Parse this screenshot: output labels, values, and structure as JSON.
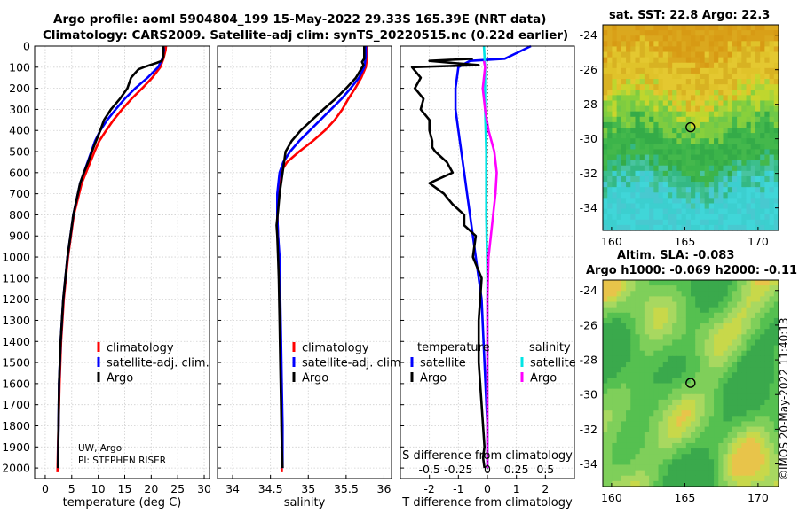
{
  "header": {
    "line1": "Argo profile: aoml 5904804_199 15-May-2022 29.33S 165.39E (NRT data)",
    "line2": "Climatology: CARS2009. Satellite-adj clim: synTS_20220515.nc (0.22d earlier)"
  },
  "credit": {
    "line1": "UW, Argo",
    "line2": "PI: STEPHEN RISER"
  },
  "watermark": "©IMOS 20-May-2022 11:40:13",
  "colors": {
    "climatology": "#ff0000",
    "satellite": "#0000ff",
    "argo": "#000000",
    "sat_salinity": "#00e5e5",
    "argo_salinity": "#ff00ff"
  },
  "chart_data": [
    {
      "id": "temperature",
      "type": "line",
      "xlabel": "temperature (deg C)",
      "ylabel": "",
      "xlim": [
        -2,
        31
      ],
      "ylim": [
        2050,
        0
      ],
      "xticks": [
        "0",
        "5",
        "10",
        "15",
        "20",
        "25",
        "30"
      ],
      "xtick_values": [
        0,
        5,
        10,
        15,
        20,
        25,
        30
      ],
      "yticks": [
        "0",
        "100",
        "200",
        "300",
        "400",
        "500",
        "600",
        "700",
        "800",
        "900",
        "1000",
        "1100",
        "1200",
        "1300",
        "1400",
        "1500",
        "1600",
        "1700",
        "1800",
        "1900",
        "2000"
      ],
      "ytick_values": [
        0,
        100,
        200,
        300,
        400,
        500,
        600,
        700,
        800,
        900,
        1000,
        1100,
        1200,
        1300,
        1400,
        1500,
        1600,
        1700,
        1800,
        1900,
        2000
      ],
      "legend": [
        "climatology",
        "satellite-adj. clim.",
        "Argo"
      ],
      "series": [
        {
          "name": "climatology",
          "color": "#ff0000",
          "x": [
            22.8,
            22.7,
            22.3,
            21.7,
            20.2,
            18.3,
            16.3,
            14.5,
            12.9,
            11.5,
            10.2,
            9.3,
            8.5,
            7.7,
            6.9,
            5.4,
            4.3,
            3.5,
            3.0,
            2.7,
            2.5,
            2.4,
            2.3
          ],
          "y": [
            0,
            20,
            60,
            100,
            150,
            200,
            250,
            300,
            350,
            400,
            450,
            500,
            550,
            600,
            650,
            800,
            1000,
            1200,
            1400,
            1600,
            1800,
            1900,
            2020
          ]
        },
        {
          "name": "satellite-adj. clim.",
          "color": "#0000ff",
          "x": [
            22.3,
            22.4,
            22.1,
            21.3,
            19.3,
            17.0,
            15.0,
            13.3,
            11.7,
            10.4,
            9.4,
            8.7,
            8.0,
            7.3,
            6.6,
            5.3,
            4.2,
            3.4,
            2.9,
            2.6,
            2.5,
            2.4
          ],
          "y": [
            0,
            20,
            60,
            100,
            150,
            200,
            250,
            300,
            350,
            400,
            450,
            500,
            550,
            600,
            650,
            800,
            1000,
            1200,
            1400,
            1600,
            1800,
            2000
          ]
        },
        {
          "name": "Argo",
          "color": "#000000",
          "x": [
            22.3,
            22.3,
            22.0,
            21.0,
            19.8,
            18.6,
            17.6,
            16.9,
            16.2,
            15.5,
            14.1,
            12.4,
            11.1,
            10.4,
            9.6,
            8.8,
            8.1,
            7.3,
            6.6,
            5.3,
            4.2,
            3.4,
            2.9,
            2.6,
            2.5,
            2.4
          ],
          "y": [
            0,
            50,
            70,
            80,
            90,
            100,
            110,
            130,
            150,
            200,
            250,
            300,
            350,
            400,
            450,
            500,
            550,
            600,
            650,
            800,
            1000,
            1200,
            1400,
            1600,
            1800,
            2000
          ]
        }
      ]
    },
    {
      "id": "salinity",
      "type": "line",
      "xlabel": "salinity",
      "ylabel": "",
      "xlim": [
        33.8,
        36.1
      ],
      "ylim": [
        2050,
        0
      ],
      "xticks": [
        "34",
        "34.5",
        "35",
        "35.5",
        "36"
      ],
      "xtick_values": [
        34,
        34.5,
        35,
        35.5,
        36
      ],
      "legend": [
        "climatology",
        "satellite-adj. clim.",
        "Argo"
      ],
      "series": [
        {
          "name": "climatology",
          "color": "#ff0000",
          "x": [
            35.78,
            35.78,
            35.76,
            35.7,
            35.62,
            35.53,
            35.45,
            35.35,
            35.22,
            35.06,
            34.88,
            34.72,
            34.63,
            34.6,
            34.59,
            34.6,
            34.61,
            34.62,
            34.63,
            34.64,
            34.65,
            34.65,
            34.65
          ],
          "y": [
            0,
            50,
            100,
            150,
            200,
            250,
            300,
            350,
            400,
            450,
            500,
            550,
            600,
            700,
            800,
            900,
            1000,
            1200,
            1400,
            1600,
            1800,
            1900,
            2020
          ]
        },
        {
          "name": "satellite-adj. clim.",
          "color": "#0000ff",
          "x": [
            35.76,
            35.76,
            35.74,
            35.67,
            35.56,
            35.44,
            35.3,
            35.16,
            35.02,
            34.88,
            34.76,
            34.67,
            34.62,
            34.59,
            34.59,
            34.6,
            34.62,
            34.63,
            34.64,
            34.65,
            34.66,
            34.66
          ],
          "y": [
            0,
            50,
            100,
            150,
            200,
            250,
            300,
            350,
            400,
            450,
            500,
            550,
            600,
            700,
            800,
            900,
            1000,
            1200,
            1400,
            1600,
            1800,
            2000
          ]
        },
        {
          "name": "Argo",
          "color": "#000000",
          "x": [
            35.74,
            35.74,
            35.71,
            35.73,
            35.63,
            35.5,
            35.36,
            35.2,
            35.05,
            34.9,
            34.78,
            34.7,
            34.66,
            34.62,
            34.6,
            34.58,
            34.59,
            34.6,
            34.61,
            34.62,
            34.63,
            34.64,
            34.65,
            34.66
          ],
          "y": [
            0,
            60,
            75,
            90,
            150,
            200,
            250,
            300,
            350,
            400,
            450,
            500,
            600,
            700,
            780,
            850,
            900,
            1000,
            1100,
            1300,
            1500,
            1700,
            1900,
            2000
          ]
        }
      ]
    },
    {
      "id": "difference",
      "type": "line",
      "xlabel": "T difference from climatology",
      "top_label": "S difference from climatology",
      "xlim": [
        -3.0,
        3.0
      ],
      "ylim": [
        2050,
        0
      ],
      "xticks": [
        "-2",
        "-1",
        "0",
        "1",
        "2"
      ],
      "xtick_values": [
        -2,
        -1,
        0,
        1,
        2
      ],
      "s_xticks": [
        "-0.5",
        "-0.25",
        "0",
        "0.25",
        "0.5"
      ],
      "s_xtick_values": [
        -0.5,
        -0.25,
        0,
        0.25,
        0.5
      ],
      "legend_temperature_title": "temperature",
      "legend_salinity_title": "salinity",
      "legend_temperature": [
        "satellite",
        "Argo"
      ],
      "legend_salinity": [
        "satellite",
        "Argo"
      ],
      "series": [
        {
          "name": "temperature satellite",
          "color": "#0000ff",
          "x": [
            1.5,
            0.6,
            -0.6,
            -1.0,
            -1.1,
            -1.1,
            -1.0,
            -0.9,
            -0.8,
            -0.7,
            -0.6,
            -0.4,
            -0.2,
            -0.1,
            0.0,
            0.0
          ],
          "y": [
            0,
            60,
            70,
            100,
            200,
            300,
            400,
            500,
            600,
            700,
            800,
            1000,
            1200,
            1500,
            1800,
            2000
          ]
        },
        {
          "name": "temperature Argo",
          "color": "#000000",
          "x": [
            -0.5,
            -2.0,
            -1.2,
            -0.3,
            -2.6,
            -2.3,
            -2.5,
            -2.2,
            -2.3,
            -2.0,
            -2.0,
            -1.9,
            -1.9,
            -1.8,
            -1.4,
            -1.2,
            -2.0,
            -1.5,
            -1.2,
            -0.8,
            -0.8,
            -0.4,
            -0.5,
            -0.2,
            -0.3,
            -0.3,
            -0.2,
            -0.1,
            -0.15,
            -0.1
          ],
          "y": [
            60,
            70,
            80,
            90,
            100,
            150,
            200,
            250,
            300,
            350,
            400,
            450,
            480,
            500,
            550,
            600,
            650,
            700,
            750,
            800,
            850,
            900,
            1000,
            1100,
            1300,
            1500,
            1700,
            1900,
            1950,
            2000
          ]
        },
        {
          "name": "salinity satellite",
          "color": "#00e5e5",
          "x": [
            -0.03,
            -0.02,
            -0.02,
            -0.01,
            -0.01,
            0.0,
            0.0,
            0.0,
            0.0
          ],
          "y": [
            0,
            100,
            300,
            500,
            800,
            1100,
            1400,
            1700,
            2000
          ]
        },
        {
          "name": "salinity Argo",
          "color": "#ff00ff",
          "x": [
            -0.03,
            -0.02,
            -0.04,
            -0.02,
            0.01,
            0.06,
            0.08,
            0.07,
            0.05,
            0.03,
            0.01,
            0.0,
            0.0,
            0.0
          ],
          "y": [
            70,
            100,
            200,
            300,
            400,
            500,
            600,
            700,
            800,
            900,
            1000,
            1200,
            1600,
            2000
          ]
        }
      ]
    },
    {
      "id": "sst_map",
      "type": "heatmap",
      "title": "sat. SST: 22.8 Argo: 22.3",
      "xticks": [
        "160",
        "165",
        "170"
      ],
      "xtick_values": [
        160,
        165,
        170
      ],
      "yticks": [
        "-24",
        "-26",
        "-28",
        "-30",
        "-32",
        "-34"
      ],
      "ytick_values": [
        -24,
        -26,
        -28,
        -30,
        -32,
        -34
      ],
      "xlim": [
        159.4,
        171.4
      ],
      "ylim": [
        -35.3,
        -23.4
      ],
      "marker": {
        "lon": 165.39,
        "lat": -29.33
      }
    },
    {
      "id": "sla_map",
      "type": "heatmap",
      "title": "Altim. SLA: -0.083",
      "subtitle": "Argo h1000: -0.069 h2000: -0.11",
      "xticks": [
        "160",
        "165",
        "170"
      ],
      "xtick_values": [
        160,
        165,
        170
      ],
      "yticks": [
        "-24",
        "-26",
        "-28",
        "-30",
        "-32",
        "-34"
      ],
      "ytick_values": [
        -24,
        -26,
        -28,
        -30,
        -32,
        -34
      ],
      "xlim": [
        159.4,
        171.4
      ],
      "ylim": [
        -35.3,
        -23.4
      ],
      "marker": {
        "lon": 165.39,
        "lat": -29.33
      }
    }
  ]
}
